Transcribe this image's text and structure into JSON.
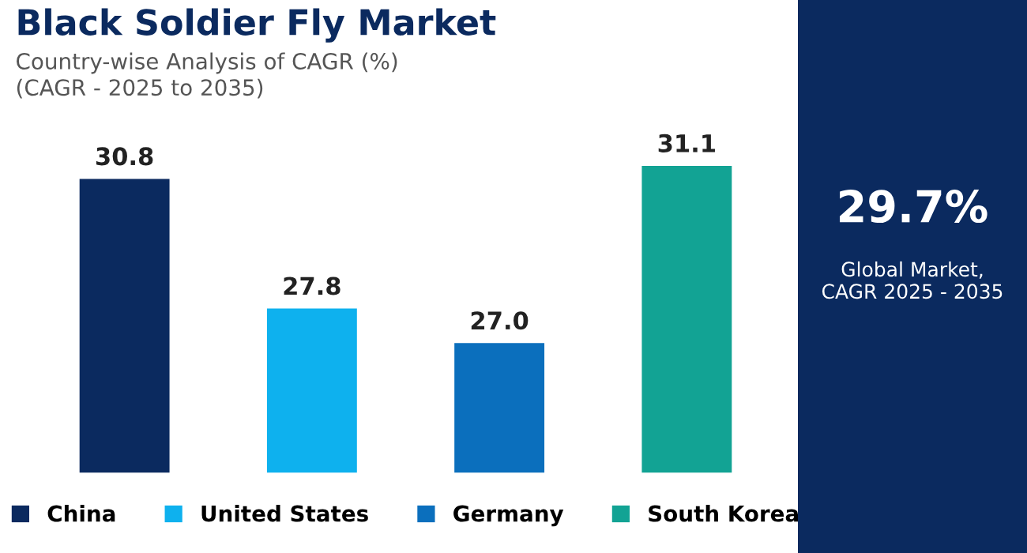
{
  "chart_data": [
    {
      "type": "bar",
      "title": "Black Soldier Fly Market",
      "subtitle": "Country-wise Analysis of CAGR (%)\n(CAGR - 2025 to 2035)",
      "categories": [
        null,
        null,
        null,
        null
      ],
      "stacked": true,
      "series": [
        {
          "name": "China",
          "color": "#0b2a5f",
          "values": [
            30.8,
            null,
            null,
            null
          ],
          "value_labels": [
            "30.8",
            null,
            null,
            null
          ]
        },
        {
          "name": "United States",
          "color": "#0eb1ee",
          "values": [
            null,
            27.8,
            null,
            null
          ],
          "value_labels": [
            null,
            "27.8",
            null,
            null
          ]
        },
        {
          "name": "Germany",
          "color": "#0b6fbd",
          "values": [
            null,
            null,
            27.0,
            null
          ],
          "value_labels": [
            null,
            null,
            "27.0",
            null
          ]
        },
        {
          "name": "South Korea",
          "color": "#12a394",
          "values": [
            null,
            null,
            null,
            31.1
          ],
          "value_labels": [
            null,
            null,
            null,
            "31.1"
          ]
        }
      ],
      "ylim": [
        24,
        31.1
      ],
      "legend": "bottom"
    },
    {
      "type": "other",
      "title": "29.7%",
      "subtitle": "Global Market,\nCAGR 2025 - 2035"
    }
  ]
}
